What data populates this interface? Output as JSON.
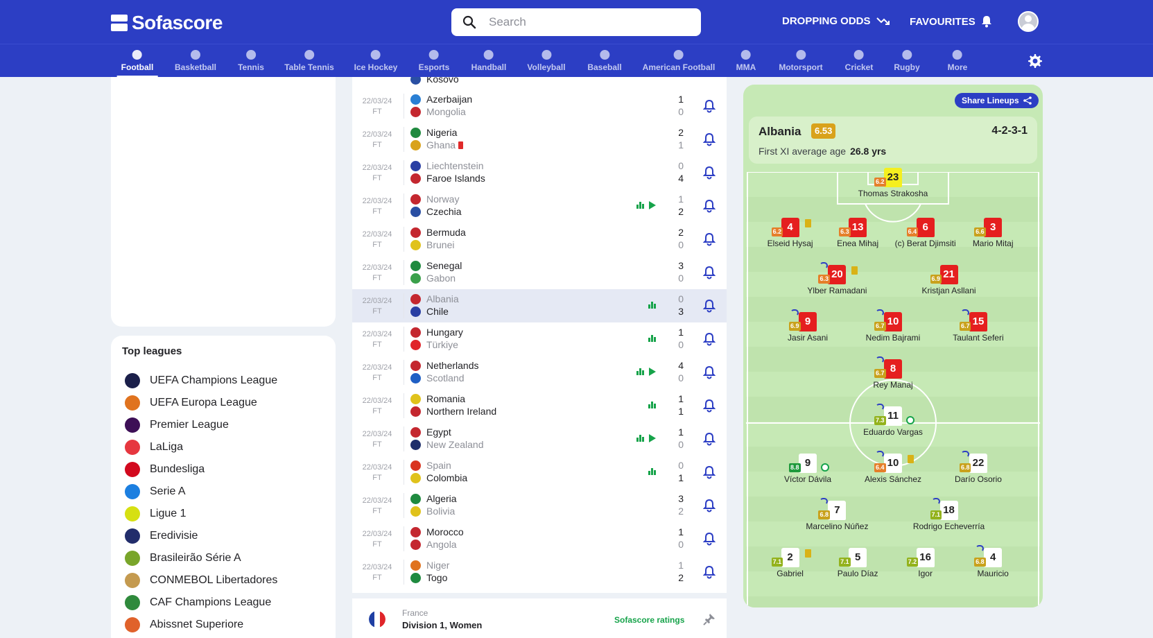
{
  "header": {
    "logo": "Sofascore",
    "search_placeholder": "Search",
    "dropping_odds": "DROPPING ODDS",
    "favourites": "FAVOURITES"
  },
  "sports": [
    {
      "label": "Football",
      "active": true
    },
    {
      "label": "Basketball"
    },
    {
      "label": "Tennis"
    },
    {
      "label": "Table Tennis"
    },
    {
      "label": "Ice Hockey"
    },
    {
      "label": "Esports"
    },
    {
      "label": "Handball"
    },
    {
      "label": "Volleyball"
    },
    {
      "label": "Baseball"
    },
    {
      "label": "American Football"
    },
    {
      "label": "MMA"
    },
    {
      "label": "Motorsport"
    },
    {
      "label": "Cricket"
    },
    {
      "label": "Rugby"
    },
    {
      "label": "More"
    }
  ],
  "top_leagues": {
    "title": "Top leagues",
    "items": [
      {
        "label": "UEFA Champions League",
        "color": "#1b1f4a"
      },
      {
        "label": "UEFA Europa League",
        "color": "#e0731f"
      },
      {
        "label": "Premier League",
        "color": "#3d0f56"
      },
      {
        "label": "LaLiga",
        "color": "#e6373f"
      },
      {
        "label": "Bundesliga",
        "color": "#d2091e"
      },
      {
        "label": "Serie A",
        "color": "#1c7fe0"
      },
      {
        "label": "Ligue 1",
        "color": "#d6e012"
      },
      {
        "label": "Eredivisie",
        "color": "#222d6b"
      },
      {
        "label": "Brasileirão Série A",
        "color": "#79a52a"
      },
      {
        "label": "CONMEBOL Libertadores",
        "color": "#c49a4f"
      },
      {
        "label": "CAF Champions League",
        "color": "#2f8a3c"
      },
      {
        "label": "Abissnet Superiore",
        "color": "#e0622b"
      }
    ]
  },
  "matches": [
    {
      "date": "22/03/24",
      "status": "FT",
      "home": "Azerbaijan",
      "away": "Mongolia",
      "hs": "1",
      "as": "0",
      "hcol": "#2a7fd4",
      "acol": "#c4272f",
      "winner": "home"
    },
    {
      "date": "22/03/24",
      "status": "FT",
      "home": "Nigeria",
      "away": "Ghana",
      "hs": "2",
      "as": "1",
      "hcol": "#1f8a3f",
      "acol": "#d9a21b",
      "winner": "home",
      "away_red": true
    },
    {
      "date": "22/03/24",
      "status": "FT",
      "home": "Liechtenstein",
      "away": "Faroe Islands",
      "hs": "0",
      "as": "4",
      "hcol": "#2a3fa3",
      "acol": "#c4272f",
      "winner": "away"
    },
    {
      "date": "22/03/24",
      "status": "FT",
      "home": "Norway",
      "away": "Czechia",
      "hs": "1",
      "as": "2",
      "hcol": "#c4272f",
      "acol": "#2a4fa3",
      "winner": "away",
      "stats": true,
      "play": true
    },
    {
      "date": "22/03/24",
      "status": "FT",
      "home": "Bermuda",
      "away": "Brunei",
      "hs": "2",
      "as": "0",
      "hcol": "#c4272f",
      "acol": "#e0c21b",
      "winner": "home"
    },
    {
      "date": "22/03/24",
      "status": "FT",
      "home": "Senegal",
      "away": "Gabon",
      "hs": "3",
      "as": "0",
      "hcol": "#1f8a3f",
      "acol": "#3aa04a",
      "winner": "home"
    },
    {
      "date": "22/03/24",
      "status": "FT",
      "home": "Albania",
      "away": "Chile",
      "hs": "0",
      "as": "3",
      "hcol": "#c4272f",
      "acol": "#2a3fa3",
      "winner": "away",
      "stats": true,
      "highlight": true
    },
    {
      "date": "22/03/24",
      "status": "FT",
      "home": "Hungary",
      "away": "Türkiye",
      "hs": "1",
      "as": "0",
      "hcol": "#c4272f",
      "acol": "#e0252a",
      "winner": "home",
      "stats": true
    },
    {
      "date": "22/03/24",
      "status": "FT",
      "home": "Netherlands",
      "away": "Scotland",
      "hs": "4",
      "as": "0",
      "hcol": "#c4272f",
      "acol": "#1f5fc4",
      "winner": "home",
      "stats": true,
      "play": true
    },
    {
      "date": "22/03/24",
      "status": "FT",
      "home": "Romania",
      "away": "Northern Ireland",
      "hs": "1",
      "as": "1",
      "hcol": "#e0c21b",
      "acol": "#c4272f",
      "winner": "draw",
      "stats": true
    },
    {
      "date": "22/03/24",
      "status": "FT",
      "home": "Egypt",
      "away": "New Zealand",
      "hs": "1",
      "as": "0",
      "hcol": "#c4272f",
      "acol": "#1f2f6b",
      "winner": "home",
      "stats": true,
      "play": true
    },
    {
      "date": "22/03/24",
      "status": "FT",
      "home": "Spain",
      "away": "Colombia",
      "hs": "0",
      "as": "1",
      "hcol": "#d9341f",
      "acol": "#e0c21b",
      "winner": "away",
      "stats": true
    },
    {
      "date": "22/03/24",
      "status": "FT",
      "home": "Algeria",
      "away": "Bolivia",
      "hs": "3",
      "as": "2",
      "hcol": "#1f8a3f",
      "acol": "#e0c21b",
      "winner": "home"
    },
    {
      "date": "22/03/24",
      "status": "FT",
      "home": "Morocco",
      "away": "Angola",
      "hs": "1",
      "as": "0",
      "hcol": "#c4272f",
      "acol": "#c4272f",
      "winner": "home"
    },
    {
      "date": "22/03/24",
      "status": "FT",
      "home": "Niger",
      "away": "Togo",
      "hs": "1",
      "as": "2",
      "hcol": "#e0731f",
      "acol": "#1f8a3f",
      "winner": "away"
    }
  ],
  "top_partial_match": {
    "team": "Kosovo"
  },
  "section": {
    "country": "France",
    "tournament": "Division 1, Women",
    "ratings_link": "Sofascore ratings"
  },
  "lineup": {
    "share": "Share Lineups",
    "team": "Albania",
    "rating": "6.53",
    "formation": "4-2-3-1",
    "avg_age_label": "First XI average age",
    "avg_age_value": "26.8 yrs",
    "home_players": [
      {
        "num": "23",
        "name": "Thomas Strakosha",
        "rating": "6.2",
        "rc": "r-orange",
        "kit": "gk",
        "x": 0.5,
        "y": 0.0
      },
      {
        "num": "4",
        "name": "Elseid Hysaj",
        "rating": "6.2",
        "rc": "r-orange",
        "kit": "red",
        "x": 0.15,
        "y": 1,
        "yellow": true
      },
      {
        "num": "13",
        "name": "Enea Mihaj",
        "rating": "6.3",
        "rc": "r-orange",
        "kit": "red",
        "x": 0.38,
        "y": 1
      },
      {
        "num": "6",
        "name": "(c) Berat Djimsiti",
        "rating": "6.4",
        "rc": "r-orange",
        "kit": "red",
        "x": 0.61,
        "y": 1
      },
      {
        "num": "3",
        "name": "Mario Mitaj",
        "rating": "6.6",
        "rc": "r-yellow",
        "kit": "red",
        "x": 0.84,
        "y": 1
      },
      {
        "num": "20",
        "name": "Ylber Ramadani",
        "rating": "6.3",
        "rc": "r-orange",
        "kit": "red",
        "x": 0.31,
        "y": 2,
        "yellow": true,
        "sub": true
      },
      {
        "num": "21",
        "name": "Kristjan Asllani",
        "rating": "6.9",
        "rc": "r-yellow",
        "kit": "red",
        "x": 0.69,
        "y": 2
      },
      {
        "num": "9",
        "name": "Jasir Asani",
        "rating": "6.9",
        "rc": "r-yellow",
        "kit": "red",
        "x": 0.21,
        "y": 3,
        "sub": true
      },
      {
        "num": "10",
        "name": "Nedim Bajrami",
        "rating": "6.7",
        "rc": "r-yellow",
        "kit": "red",
        "x": 0.5,
        "y": 3,
        "sub": true
      },
      {
        "num": "15",
        "name": "Taulant Seferi",
        "rating": "6.7",
        "rc": "r-yellow",
        "kit": "red",
        "x": 0.79,
        "y": 3,
        "sub": true
      },
      {
        "num": "8",
        "name": "Rey Manaj",
        "rating": "6.7",
        "rc": "r-yellow",
        "kit": "red",
        "x": 0.5,
        "y": 4,
        "sub": true
      }
    ],
    "away_players": [
      {
        "num": "11",
        "name": "Eduardo Vargas",
        "rating": "7.3",
        "rc": "r-lime",
        "kit": "white",
        "x": 0.5,
        "y": 5,
        "sub": true,
        "goal": true
      },
      {
        "num": "9",
        "name": "Víctor Dávila",
        "rating": "8.8",
        "rc": "r-green",
        "kit": "white",
        "x": 0.21,
        "y": 6,
        "goal": true
      },
      {
        "num": "10",
        "name": "Alexis Sánchez",
        "rating": "6.4",
        "rc": "r-orange",
        "kit": "white",
        "x": 0.5,
        "y": 6,
        "sub": true,
        "yellow": true
      },
      {
        "num": "22",
        "name": "Darío Osorio",
        "rating": "6.8",
        "rc": "r-yellow",
        "kit": "white",
        "x": 0.79,
        "y": 6,
        "sub": true
      },
      {
        "num": "7",
        "name": "Marcelino Núñez",
        "rating": "6.8",
        "rc": "r-yellow",
        "kit": "white",
        "x": 0.31,
        "y": 7,
        "sub": true
      },
      {
        "num": "18",
        "name": "Rodrigo Echeverría",
        "rating": "7.1",
        "rc": "r-lime",
        "kit": "white",
        "x": 0.69,
        "y": 7,
        "sub": true
      },
      {
        "num": "2",
        "name": "Gabriel",
        "rating": "7.1",
        "rc": "r-lime",
        "kit": "white",
        "x": 0.15,
        "y": 8,
        "yellow": true
      },
      {
        "num": "5",
        "name": "Paulo Díaz",
        "rating": "7.1",
        "rc": "r-lime",
        "kit": "white",
        "x": 0.38,
        "y": 8
      },
      {
        "num": "16",
        "name": "Igor",
        "rating": "7.2",
        "rc": "r-lime",
        "kit": "white",
        "x": 0.61,
        "y": 8
      },
      {
        "num": "4",
        "name": "Mauricio",
        "rating": "6.8",
        "rc": "r-yellow",
        "kit": "white",
        "x": 0.84,
        "y": 8,
        "sub": true
      }
    ]
  }
}
